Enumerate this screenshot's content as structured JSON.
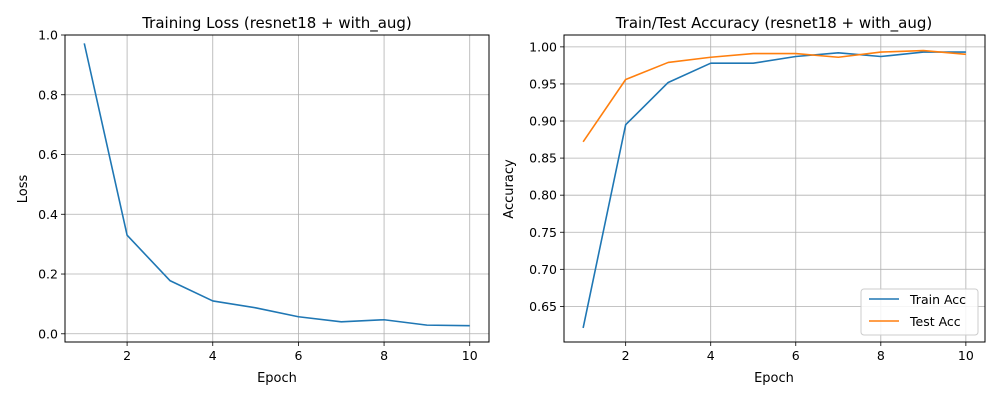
{
  "chart_data": [
    {
      "type": "line",
      "title": "Training Loss (resnet18 + with_aug)",
      "xlabel": "Epoch",
      "ylabel": "Loss",
      "xlim": [
        0.55,
        10.45
      ],
      "ylim": [
        -0.0275,
        1.0
      ],
      "xticks": [
        2,
        4,
        6,
        8,
        10
      ],
      "yticks": [
        0.0,
        0.2,
        0.4,
        0.6,
        0.8,
        1.0
      ],
      "ytick_decimals": 1,
      "grid": true,
      "legend": null,
      "x": [
        1,
        2,
        3,
        4,
        5,
        6,
        7,
        8,
        9,
        10
      ],
      "series": [
        {
          "name": "",
          "color": "#1f77b4",
          "values": [
            0.972,
            0.33,
            0.178,
            0.11,
            0.087,
            0.057,
            0.04,
            0.047,
            0.029,
            0.027
          ]
        }
      ]
    },
    {
      "type": "line",
      "title": "Train/Test Accuracy (resnet18 + with_aug)",
      "xlabel": "Epoch",
      "ylabel": "Accuracy",
      "xlim": [
        0.55,
        10.45
      ],
      "ylim": [
        0.602,
        1.016
      ],
      "xticks": [
        2,
        4,
        6,
        8,
        10
      ],
      "yticks": [
        0.65,
        0.7,
        0.75,
        0.8,
        0.85,
        0.9,
        0.95,
        1.0
      ],
      "ytick_decimals": 2,
      "grid": true,
      "legend": "lower right",
      "x": [
        1,
        2,
        3,
        4,
        5,
        6,
        7,
        8,
        9,
        10
      ],
      "series": [
        {
          "name": "Train Acc",
          "color": "#1f77b4",
          "values": [
            0.621,
            0.895,
            0.952,
            0.978,
            0.978,
            0.987,
            0.992,
            0.987,
            0.993,
            0.993
          ]
        },
        {
          "name": "Test Acc",
          "color": "#ff7f0e",
          "values": [
            0.872,
            0.956,
            0.979,
            0.986,
            0.991,
            0.991,
            0.986,
            0.993,
            0.995,
            0.99
          ]
        }
      ]
    }
  ]
}
